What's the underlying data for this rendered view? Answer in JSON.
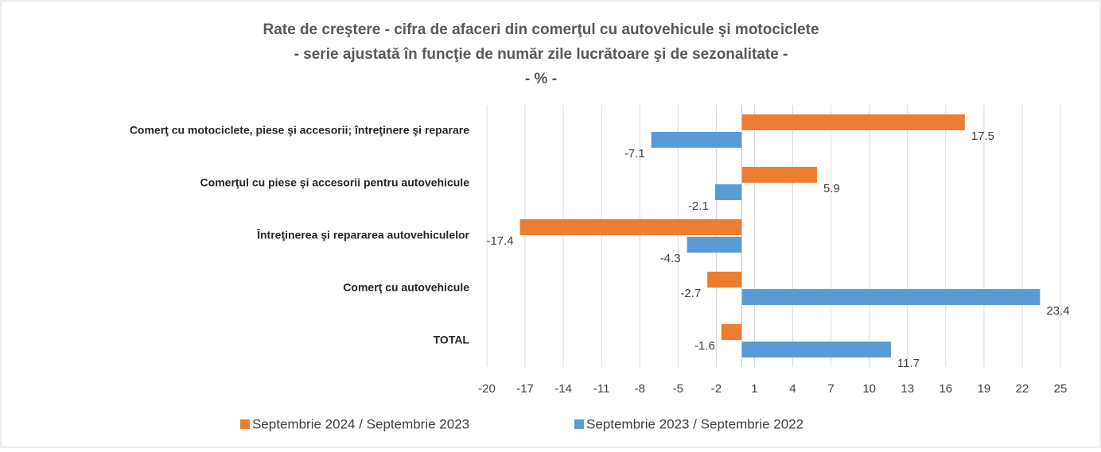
{
  "chart_data": {
    "type": "bar",
    "orientation": "horizontal",
    "title_lines": [
      "Rate de creştere - cifra de afaceri din comerţul cu autovehicule şi motociclete",
      "- serie ajustată în funcţie de număr zile lucrătoare şi de sezonalitate -",
      "- % -"
    ],
    "categories": [
      "Comerţ cu motociclete, piese şi accesorii; întreţinere şi reparare",
      "Comerţul cu piese şi accesorii pentru autovehicule",
      "Întreţinerea şi repararea autovehiculelor",
      "Comerţ cu autovehicule",
      "TOTAL"
    ],
    "series": [
      {
        "name": "Septembrie 2024 / Septembrie 2023",
        "color": "#ed7d31",
        "values": [
          17.5,
          5.9,
          -17.4,
          -2.7,
          -1.6
        ]
      },
      {
        "name": "Septembrie 2023 / Septembrie 2022",
        "color": "#5b9bd5",
        "values": [
          -7.1,
          -2.1,
          -4.3,
          23.4,
          11.7
        ]
      }
    ],
    "xlim": [
      -20,
      25
    ],
    "xticks": [
      -20,
      -17,
      -14,
      -11,
      -8,
      -5,
      -2,
      1,
      4,
      7,
      10,
      13,
      16,
      19,
      22,
      25
    ],
    "grid": true,
    "legend": "bottom"
  }
}
